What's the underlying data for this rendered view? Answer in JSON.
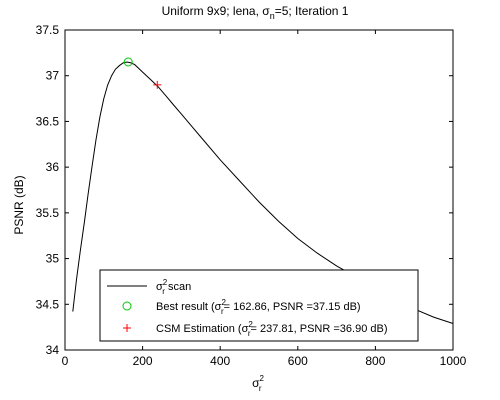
{
  "chart_data": {
    "type": "line",
    "title": {
      "pre": "Uniform 9x9; lena, σ",
      "sub": "n",
      "post": "=5; Iteration 1"
    },
    "xlabel": {
      "base": "σ",
      "sup": "2",
      "sub": "r"
    },
    "ylabel": "PSNR (dB)",
    "xlim": [
      0,
      1000
    ],
    "ylim": [
      34,
      37.5
    ],
    "xticks": [
      0,
      200,
      400,
      600,
      800,
      1000
    ],
    "yticks": [
      34,
      34.5,
      35,
      35.5,
      36,
      36.5,
      37,
      37.5
    ],
    "grid": false,
    "legend_position": "bottom-center",
    "series": [
      {
        "legend": {
          "base": "σ",
          "sup": "2",
          "sub": "r",
          "post": " scan"
        },
        "color": "#000000",
        "x": [
          20,
          30,
          40,
          50,
          60,
          70,
          80,
          90,
          100,
          110,
          120,
          130,
          140,
          150,
          160,
          170,
          180,
          190,
          200,
          220,
          240,
          260,
          280,
          300,
          350,
          400,
          450,
          500,
          550,
          600,
          650,
          700,
          750,
          800,
          850,
          900,
          950,
          1000
        ],
        "y": [
          34.42,
          34.78,
          35.1,
          35.4,
          35.72,
          36.02,
          36.3,
          36.55,
          36.75,
          36.9,
          37.0,
          37.07,
          37.11,
          37.14,
          37.15,
          37.14,
          37.12,
          37.08,
          37.04,
          36.96,
          36.88,
          36.78,
          36.68,
          36.58,
          36.33,
          36.08,
          35.85,
          35.62,
          35.41,
          35.22,
          35.06,
          34.92,
          34.8,
          34.68,
          34.56,
          34.45,
          34.36,
          34.29
        ]
      }
    ],
    "markers": [
      {
        "kind": "circle",
        "color": "#00cc00",
        "x": 162.86,
        "y": 37.15,
        "legend": {
          "pre": "Best result (σ",
          "sup": "2",
          "sub": "r",
          "post": "= 162.86, PSNR =37.15 dB)"
        }
      },
      {
        "kind": "plus",
        "color": "#ff0000",
        "x": 237.81,
        "y": 36.9,
        "legend": {
          "pre": "CSM Estimation (σ",
          "sup": "2",
          "sub": "r",
          "post": "= 237.81, PSNR =36.90 dB)"
        }
      }
    ]
  }
}
